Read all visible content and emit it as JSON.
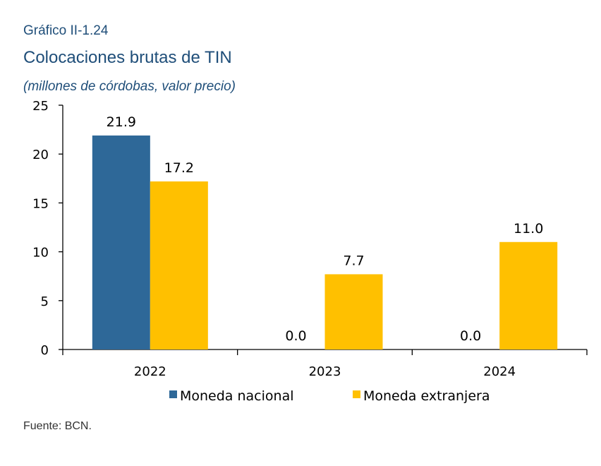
{
  "figure_label": "Gráfico II-1.24",
  "source": "Fuente: BCN.",
  "chart_data": {
    "type": "bar",
    "title": "Colocaciones brutas de TIN",
    "subtitle": "(millones de córdobas, valor precio)",
    "categories": [
      "2022",
      "2023",
      "2024"
    ],
    "series": [
      {
        "name": "Moneda nacional",
        "color": "#2e6898",
        "values": [
          21.9,
          0.0,
          0.0
        ],
        "labels": [
          "21.9",
          "0.0",
          "0.0"
        ]
      },
      {
        "name": "Moneda extranjera",
        "color": "#ffc000",
        "values": [
          17.2,
          7.7,
          11.0
        ],
        "labels": [
          "17.2",
          "7.7",
          "11.0"
        ]
      }
    ],
    "ylim": [
      0,
      25
    ],
    "yticks": [
      "0",
      "5",
      "10",
      "15",
      "20",
      "25"
    ],
    "grid": false,
    "legend_position": "bottom",
    "data_labels": true
  }
}
